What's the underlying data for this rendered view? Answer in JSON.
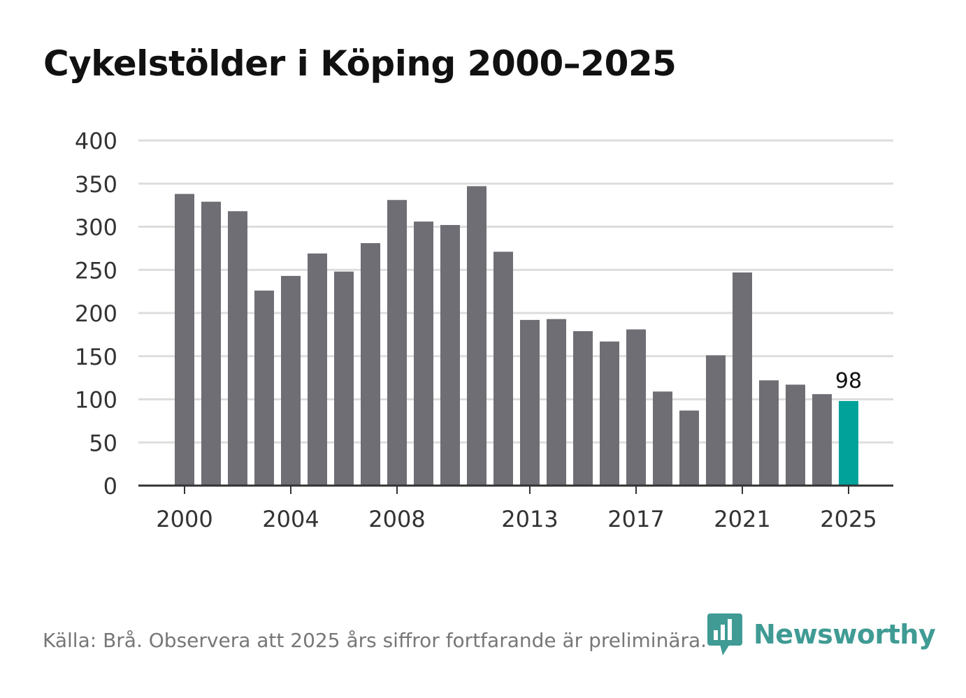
{
  "title": "Cykelstölder i Köping 2000–2025",
  "footer": "Källa: Brå. Observera att 2025 års siffror fortfarande är preliminära.",
  "brand": {
    "name": "Newsworthy",
    "icon": "newsworthy-logo-icon",
    "color": "#3f9b94"
  },
  "colors": {
    "bar": "#6f6e75",
    "highlight": "#00a29a",
    "grid": "#dddddd",
    "axis": "#333333"
  },
  "chart_data": {
    "type": "bar",
    "title": "Cykelstölder i Köping 2000–2025",
    "xlabel": "",
    "ylabel": "",
    "categories": [
      2000,
      2001,
      2002,
      2003,
      2004,
      2005,
      2006,
      2007,
      2008,
      2009,
      2010,
      2011,
      2012,
      2013,
      2014,
      2015,
      2016,
      2017,
      2018,
      2019,
      2020,
      2021,
      2022,
      2023,
      2024,
      2025
    ],
    "values": [
      338,
      329,
      318,
      226,
      243,
      269,
      248,
      281,
      331,
      306,
      302,
      347,
      271,
      192,
      193,
      179,
      167,
      181,
      109,
      87,
      151,
      247,
      122,
      117,
      106,
      98
    ],
    "ylim": [
      0,
      400
    ],
    "yticks": [
      0,
      50,
      100,
      150,
      200,
      250,
      300,
      350,
      400
    ],
    "xtick_labels": [
      "2000",
      "2004",
      "2008",
      "2013",
      "2017",
      "2021",
      "2025"
    ],
    "highlight": {
      "category": 2025,
      "label": "98"
    },
    "grid": true
  }
}
